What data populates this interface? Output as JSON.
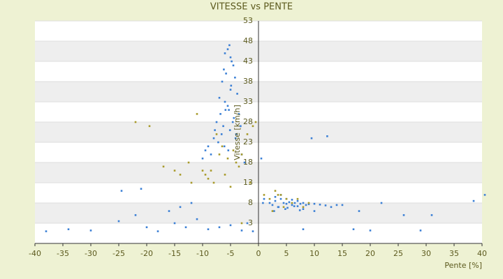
{
  "chart_data": {
    "type": "scatter",
    "title": "VITESSE vs PENTE",
    "x_label": "Pente [%]",
    "y_label": "Vitesse [km/h]",
    "xlim": [
      -40,
      40
    ],
    "xticks": [
      -40,
      -35,
      -30,
      -25,
      -20,
      -15,
      -10,
      -5,
      0,
      5,
      10,
      15,
      20,
      25,
      30,
      35,
      40
    ],
    "ylim": [
      -2,
      53
    ],
    "yticks": [
      3,
      8,
      13,
      18,
      23,
      28,
      33,
      38,
      43,
      48,
      53
    ],
    "grid": true,
    "series": [
      {
        "color": "#3a7fd5",
        "x": [
          -6,
          -5.5,
          -5,
          -4.8,
          -6.2,
          -5.2,
          -4.5,
          -5.8,
          -6.5,
          -5,
          -4.2,
          -3.8,
          -7,
          -6,
          -5.5,
          -4.9,
          -6.8,
          -5.3,
          -4.4,
          -7.5,
          -6.3,
          -5.1,
          -4,
          -3.5,
          -8,
          -7.2,
          -6.1,
          -5.4,
          -4.6,
          -3.2,
          -9,
          -8.5,
          -7.8,
          -6.6,
          -5.9,
          -4.1,
          -10,
          -9.5,
          -3,
          -2.5,
          2,
          2.5,
          3,
          3.5,
          4,
          4.5,
          5,
          5.5,
          6,
          6.5,
          7,
          7.5,
          8,
          8.5,
          9,
          10,
          11,
          12,
          13,
          14,
          3,
          4,
          5,
          6,
          7,
          8,
          2.8,
          3.6,
          4.8,
          5.2,
          6.4,
          7.4,
          9.5,
          15,
          18,
          22,
          26,
          31,
          38.5,
          40.5,
          -38,
          -34,
          -30,
          -25,
          -22,
          -20,
          -18,
          -15,
          -13,
          -11,
          -9,
          -7,
          -16,
          -12,
          -2,
          -1,
          0.5,
          1,
          8,
          12.3,
          17,
          -24.5,
          -21,
          -14,
          -5,
          10,
          0.8,
          -3,
          20,
          29
        ],
        "values": [
          45,
          46,
          44,
          43,
          41,
          47,
          42,
          40,
          38,
          36,
          39,
          35,
          34,
          33,
          32,
          37,
          30,
          31,
          29,
          28,
          27,
          26,
          25,
          30,
          24,
          23,
          22,
          21,
          28,
          27,
          22,
          20,
          26,
          25,
          31,
          24,
          19,
          21,
          20,
          18,
          8,
          7.5,
          8.5,
          7,
          9,
          8,
          7.8,
          8.2,
          7.5,
          8,
          7.2,
          7.8,
          8,
          7.5,
          7.7,
          7.8,
          7.6,
          7.4,
          7,
          7.5,
          9.5,
          10,
          9,
          8.8,
          8.5,
          6.5,
          6,
          7,
          6.5,
          6.8,
          7.2,
          6.2,
          24,
          7.5,
          6,
          8,
          5,
          5,
          8.5,
          10,
          1,
          1.5,
          1.2,
          3.5,
          5,
          2,
          1,
          3,
          2,
          4,
          1.5,
          2,
          6,
          8,
          3,
          1,
          19,
          9,
          1.5,
          24.5,
          1.5,
          11,
          11.5,
          7,
          2.5,
          6,
          8,
          1.2,
          1.2,
          1.2
        ]
      },
      {
        "color": "#a89a2a",
        "x": [
          -22,
          -19.5,
          -17,
          -15,
          -14,
          -12,
          -11,
          -10,
          -9.5,
          -9,
          -8,
          -7,
          -6,
          -5,
          -4,
          -3,
          -2,
          -1,
          -7.5,
          -6.5,
          -5.5,
          -4.5,
          -3.5,
          1,
          2,
          3,
          4,
          5,
          6,
          7,
          8,
          9,
          2.5,
          3.5,
          4.5,
          -0.5,
          -12.5,
          -8.5,
          -3,
          -1.5
        ],
        "values": [
          28,
          27,
          17,
          16,
          15,
          13,
          30,
          16,
          15,
          14,
          13,
          20,
          15,
          12,
          18,
          20,
          25,
          27,
          25,
          22,
          19,
          21,
          17,
          10,
          9,
          11,
          10,
          9,
          8,
          9,
          7,
          8,
          6,
          10,
          7,
          28,
          18,
          16,
          3,
          13
        ]
      }
    ]
  }
}
